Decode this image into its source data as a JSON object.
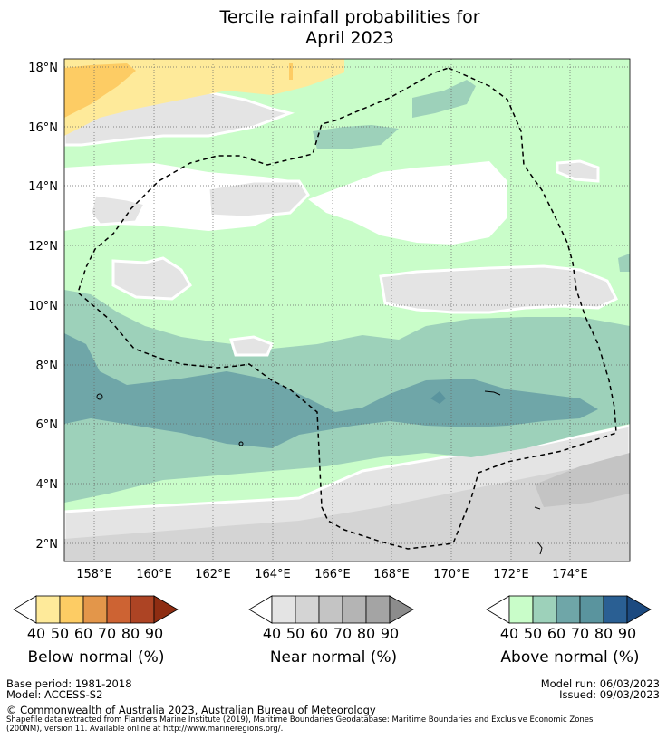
{
  "title_line1": "Tercile rainfall probabilities for",
  "title_line2": "April 2023",
  "map": {
    "lat_labels": [
      "18°N",
      "16°N",
      "14°N",
      "12°N",
      "10°N",
      "8°N",
      "6°N",
      "4°N",
      "2°N"
    ],
    "lon_labels": [
      "158°E",
      "160°E",
      "162°E",
      "164°E",
      "166°E",
      "168°E",
      "170°E",
      "172°E",
      "174°E"
    ],
    "colors": {
      "background": "#c9fdc9",
      "above_50": "#c9fdc9",
      "above_60": "#9dd1ba",
      "above_70": "#6fa6a8",
      "above_80": "#5a949e",
      "near_40": "#e4e4e4",
      "near_50": "#d4d4d4",
      "near_60": "#c4c4c4",
      "below_40": "#feea9a",
      "below_50": "#fdcc64",
      "neutral": "#ffffff"
    }
  },
  "colorbars": {
    "below": {
      "label": "Below normal (%)",
      "ticks": [
        "40",
        "50",
        "60",
        "70",
        "80",
        "90"
      ],
      "colors": [
        "#ffffff",
        "#feea9a",
        "#fdcc64",
        "#e3964a",
        "#cd6333",
        "#ad4424",
        "#8e2d12"
      ]
    },
    "near": {
      "label": "Near normal (%)",
      "ticks": [
        "40",
        "50",
        "60",
        "70",
        "80",
        "90"
      ],
      "colors": [
        "#ffffff",
        "#e4e4e4",
        "#d4d4d4",
        "#c4c4c4",
        "#b4b4b4",
        "#a4a4a4",
        "#8c8c8c"
      ]
    },
    "above": {
      "label": "Above normal (%)",
      "ticks": [
        "40",
        "50",
        "60",
        "70",
        "80",
        "90"
      ],
      "colors": [
        "#ffffff",
        "#c9fdc9",
        "#9dd1ba",
        "#6fa6a8",
        "#5a949e",
        "#2a5f93",
        "#1c4a80"
      ]
    }
  },
  "footer": {
    "base_period": "Base period: 1981-2018",
    "model": "Model: ACCESS-S2",
    "model_run": "Model run: 06/03/2023",
    "issued": "Issued: 09/03/2023",
    "copyright": "© Commonwealth of Australia 2023, Australian Bureau of Meteorology",
    "shapefile_line1": "Shapefile data extracted from Flanders Marine Institute (2019), Maritime Boundaries Geodatabase: Maritime Boundaries and Exclusive Economic Zones",
    "shapefile_line2": "(200NM), version 11. Available online at http://www.marineregions.org/."
  }
}
